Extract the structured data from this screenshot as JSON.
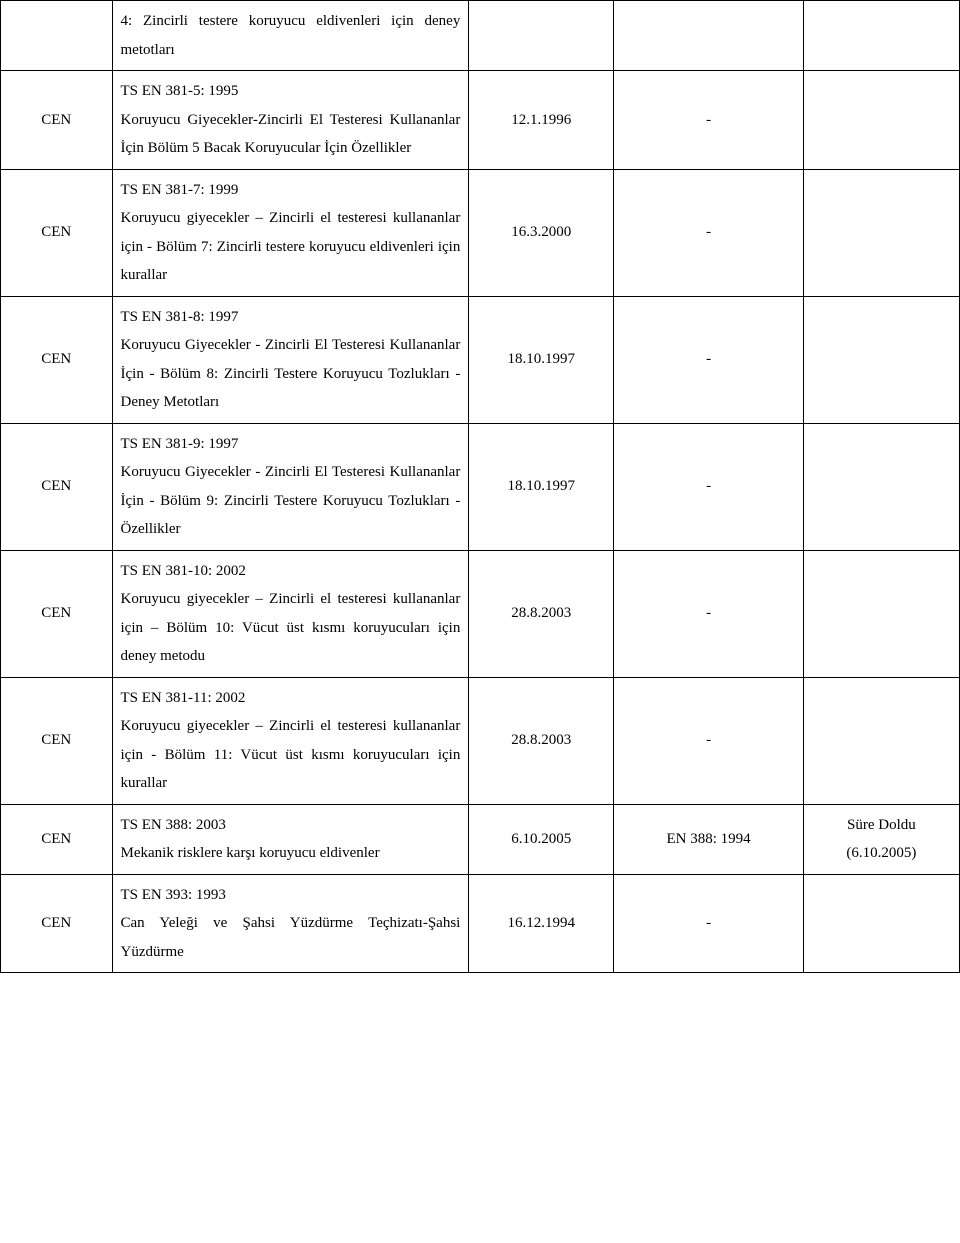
{
  "rows": [
    {
      "col1": "",
      "col2": "4: Zincirli testere koruyucu eldivenleri için deney metotları",
      "col3": "",
      "col4": "",
      "col5": ""
    },
    {
      "col1": "CEN",
      "col2": "TS EN 381-5: 1995\nKoruyucu Giyecekler-Zincirli El Testeresi Kullananlar İçin Bölüm 5 Bacak Koruyucular İçin Özellikler",
      "col3": "12.1.1996",
      "col4": "-",
      "col5": ""
    },
    {
      "col1": "CEN",
      "col2": "TS EN 381-7: 1999\nKoruyucu giyecekler – Zincirli el testeresi kullananlar için - Bölüm 7: Zincirli testere koruyucu eldivenleri için kurallar",
      "col3": "16.3.2000",
      "col4": "-",
      "col5": ""
    },
    {
      "col1": "CEN",
      "col2": "TS EN 381-8: 1997\nKoruyucu Giyecekler - Zincirli El Testeresi Kullananlar İçin - Bölüm 8: Zincirli Testere Koruyucu Tozlukları - Deney Metotları",
      "col3": "18.10.1997",
      "col4": "-",
      "col5": ""
    },
    {
      "col1": "CEN",
      "col2": "TS EN 381-9: 1997\nKoruyucu Giyecekler - Zincirli El Testeresi Kullananlar İçin - Bölüm 9: Zincirli Testere Koruyucu Tozlukları - Özellikler",
      "col3": "18.10.1997",
      "col4": "-",
      "col5": ""
    },
    {
      "col1": "CEN",
      "col2": "TS EN 381-10: 2002\nKoruyucu giyecekler – Zincirli el testeresi kullananlar için – Bölüm 10: Vücut üst kısmı koruyucuları için deney metodu",
      "col3": "28.8.2003",
      "col4": "-",
      "col5": ""
    },
    {
      "col1": "CEN",
      "col2": "TS EN 381-11: 2002\nKoruyucu giyecekler – Zincirli el testeresi kullananlar için - Bölüm 11: Vücut üst kısmı koruyucuları için kurallar",
      "col3": "28.8.2003",
      "col4": "-",
      "col5": ""
    },
    {
      "col1": "CEN",
      "col2": "TS EN 388: 2003\nMekanik risklere karşı koruyucu eldivenler",
      "col3": "6.10.2005",
      "col4": "EN 388: 1994",
      "col5": "Süre Doldu\n(6.10.2005)"
    },
    {
      "col1": "CEN",
      "col2": "TS EN 393: 1993\nCan Yeleği ve Şahsi Yüzdürme Teçhizatı-Şahsi Yüzdürme",
      "col3": "16.12.1994",
      "col4": "-",
      "col5": ""
    }
  ]
}
